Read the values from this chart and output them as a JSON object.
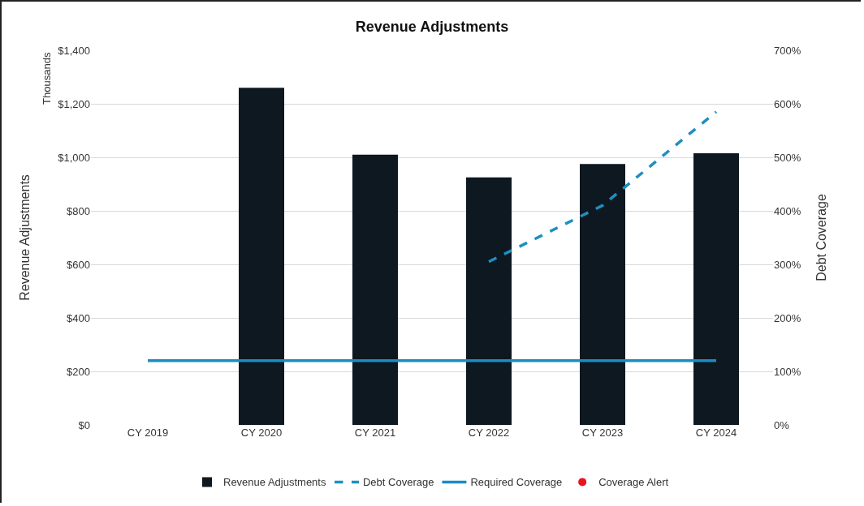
{
  "chart_data": {
    "type": "bar",
    "title": "Revenue Adjustments",
    "ylabel": "Revenue Adjustments",
    "y2label": "Debt Coverage",
    "annotations": [
      "Thousands"
    ],
    "categories": [
      "CY 2019",
      "CY 2020",
      "CY 2021",
      "CY 2022",
      "CY 2023",
      "CY 2024"
    ],
    "series": [
      {
        "name": "Revenue Adjustments",
        "color": "#0d1820",
        "values": [
          null,
          1260,
          1010,
          925,
          975,
          1015
        ]
      },
      {
        "name": "Debt Coverage",
        "type": "line",
        "axis": "y2",
        "line_style": "dashed",
        "color": "#1f8fc0",
        "values": [
          null,
          null,
          null,
          305,
          410,
          585
        ]
      },
      {
        "name": "Required Coverage",
        "type": "line",
        "axis": "y2",
        "line_style": "solid",
        "color": "#1a8cc4",
        "values": [
          120,
          120,
          120,
          120,
          120,
          120
        ]
      },
      {
        "name": "Coverage Alert",
        "type": "scatter",
        "axis": "y2",
        "marker": "circle",
        "color": "#e8141c",
        "values": [
          null,
          null,
          null,
          null,
          null,
          null
        ]
      }
    ],
    "ylim": [
      0,
      1400
    ],
    "yticks": [
      {
        "value": 0,
        "label": "$0"
      },
      {
        "value": 200,
        "label": "$200"
      },
      {
        "value": 400,
        "label": "$400"
      },
      {
        "value": 600,
        "label": "$600"
      },
      {
        "value": 800,
        "label": "$800"
      },
      {
        "value": 1000,
        "label": "$1,000"
      },
      {
        "value": 1200,
        "label": "$1,200"
      },
      {
        "value": 1400,
        "label": "$1,400"
      }
    ],
    "y2lim": [
      0,
      700
    ],
    "y2ticks": [
      {
        "value": 0,
        "label": "0%"
      },
      {
        "value": 100,
        "label": "100%"
      },
      {
        "value": 200,
        "label": "200%"
      },
      {
        "value": 300,
        "label": "300%"
      },
      {
        "value": 400,
        "label": "400%"
      },
      {
        "value": 500,
        "label": "500%"
      },
      {
        "value": 600,
        "label": "600%"
      },
      {
        "value": 700,
        "label": "700%"
      }
    ],
    "grid": "y",
    "legend": "bottom"
  }
}
